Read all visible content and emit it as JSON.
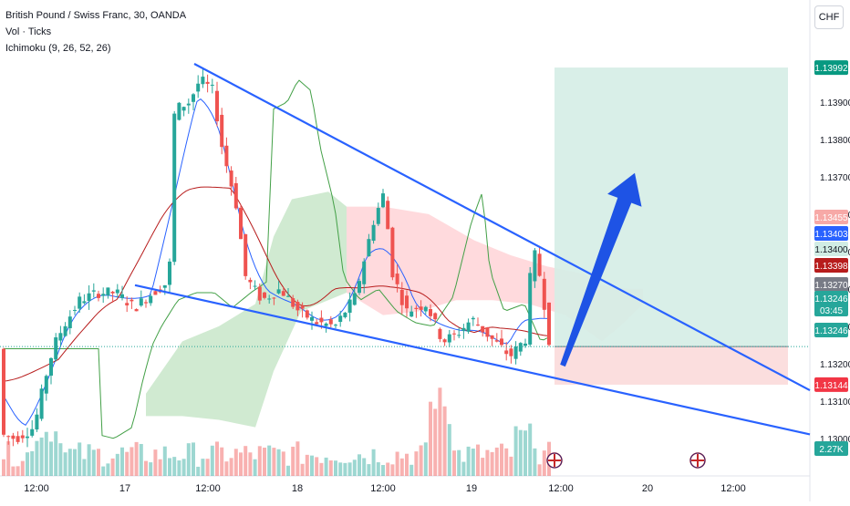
{
  "legend": {
    "title": "British Pound / Swiss Franc, 30, OANDA",
    "line2": "Vol · Ticks",
    "line3": "Ichimoku (9, 26, 52, 26)"
  },
  "currency_button": "CHF",
  "colors": {
    "up": "#26a69a",
    "down": "#ef5350",
    "trendline": "#2962ff",
    "arrow": "#1e53e5",
    "tp_zone": "#d5ede6",
    "sl_zone": "#fbdada",
    "conversion": "#2962ff",
    "base": "#b71c1c",
    "lagging": "#43a047",
    "cloud_bull": "#c8e6c9",
    "cloud_bear": "#ffcdd2"
  },
  "chart_data": {
    "type": "candlestick",
    "symbol": "GBP/CHF",
    "timeframe": "30",
    "price_axis": {
      "ylim": [
        1.129,
        1.1408
      ],
      "ticks": [
        "1.13900",
        "1.13800",
        "1.13700",
        "1.13600",
        "1.13500",
        "1.13400",
        "1.13300",
        "1.13200",
        "1.13100",
        "1.13000"
      ],
      "labels": [
        {
          "text": "1.13992",
          "value": 1.13992,
          "color": "#089981"
        },
        {
          "text": "1.13455",
          "value": 1.13455,
          "color": "#f7a9a7"
        },
        {
          "text": "1.13403",
          "value": 1.13403,
          "color": "#2962ff"
        },
        {
          "text": "1.13400",
          "value": 1.134,
          "color": "#d1ece4",
          "textcolor": "#131722"
        },
        {
          "text": "1.13398",
          "value": 1.13398,
          "color": "#b71c1c"
        },
        {
          "text": "1.13270",
          "value": 1.1327,
          "color": "#787b86"
        },
        {
          "text": "1.13246",
          "value": 1.13246,
          "color": "#26a69a",
          "countdown": "03:45"
        },
        {
          "text": "1.13246",
          "value": 1.13246,
          "color": "#26a69a",
          "sub": true
        },
        {
          "text": "1.13144",
          "value": 1.13144,
          "color": "#f23645"
        },
        {
          "text": "2.27K",
          "value": null,
          "color": "#26a69a",
          "volume": true
        }
      ]
    },
    "time_axis": [
      "12:00",
      "17",
      "12:00",
      "18",
      "12:00",
      "19",
      "12:00",
      "20",
      "12:00"
    ],
    "last_price": 1.13246,
    "position": {
      "entry": 1.13246,
      "target": 1.13992,
      "stop": 1.13144
    },
    "wedge": {
      "upper": [
        [
          0.0,
          1.14002
        ],
        [
          1.0,
          1.13129
        ]
      ],
      "lower": [
        [
          0.0,
          1.1341
        ],
        [
          1.0,
          1.13011
        ]
      ]
    },
    "arrow": {
      "from": 1.13195,
      "to": 1.1371
    }
  }
}
